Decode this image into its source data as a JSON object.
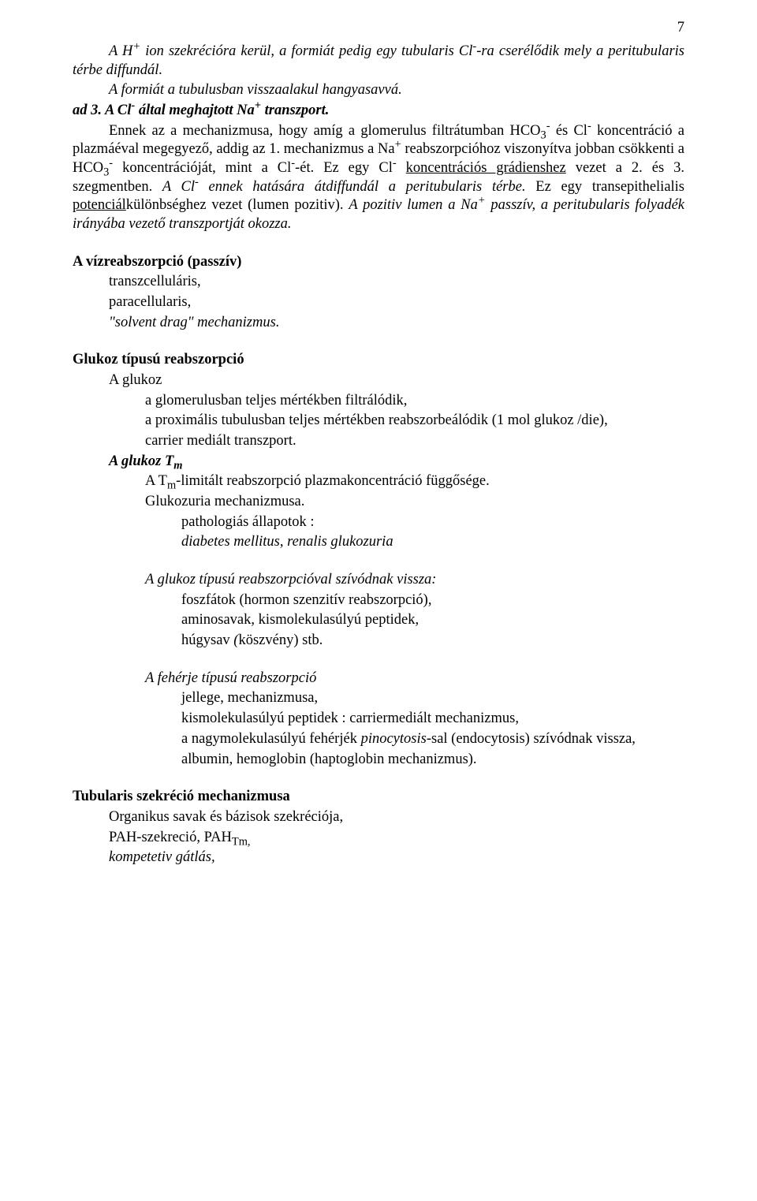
{
  "page_number": "7",
  "p1_seg1_i": "A H",
  "p1_seg2_sup": "+",
  "p1_seg3_i": " ion szekrécióra kerül, a formiát pedig egy tubularis Cl",
  "p1_seg4_sup": "-",
  "p1_seg5_i": "-ra cserélődik mely a peritubularis térbe diffundál.",
  "p2_i": "A formiát a tubulusban visszaalakul hangyasavvá.",
  "p3_a_bi": "ad 3.",
  "p3_b_bi": " A Cl",
  "p3_c_sup": "-",
  "p3_d_bi": " által meghajtott Na",
  "p3_e_sup": "+",
  "p3_f_bi": " transzport.",
  "p4_seg1": "Ennek az a mechanizmusa, hogy amíg a glomerulus filtrátumban HCO",
  "p4_seg2_sub": "3",
  "p4_seg3_sup": "-",
  "p4_seg4": " és Cl",
  "p4_seg5_sup": "-",
  "p4_seg6": " koncentráció a plazmáéval megegyező, addig az 1. mechanizmus a Na",
  "p4_seg7_sup": "+",
  "p4_seg8": " reabszorpcióhoz viszonyítva jobban csökkenti a HCO",
  "p4_seg9_sub": "3",
  "p4_seg10_sup": "-",
  "p4_seg11": " koncentrációját, mint a Cl",
  "p4_seg12_sup": "-",
  "p4_seg13": "-ét. Ez egy Cl",
  "p4_seg14_sup": "-",
  "p4_seg15": " ",
  "p4_seg16_u": "koncentrációs grádienshez",
  "p4_seg17": " vezet a 2. és 3. szegmentben. ",
  "p4_seg18_i": "A Cl",
  "p4_seg19_sup": "-",
  "p4_seg20_i": " ennek hatására átdiffundál a peritubularis térbe.",
  "p4_seg21": " Ez egy transepithelialis ",
  "p4_seg22_u": "potenciál",
  "p4_seg23": "különbséghez vezet (lumen pozitiv). ",
  "p4_seg24_i": "A pozitiv lumen a Na",
  "p4_seg25_sup": "+",
  "p4_seg26_i": " passzív, a peritubularis folyadék irányába vezető transzportját okozza.",
  "h_viz": "A vízreabszorpció (passzív)",
  "viz_l1": "transzcelluláris,",
  "viz_l2": "paracellularis,",
  "viz_l3_i": "\"solvent drag\" mechanizmus.",
  "h_glukoz": "Glukoz típusú reabszorpció",
  "g_l1": "A glukoz",
  "g_l2": "a glomerulusban teljes mértékben filtrálódik,",
  "g_l3": "a proximális tubulusban teljes mértékben reabszorbeálódik (1 mol glukoz /die),",
  "g_l4": "carrier mediált transzport.",
  "g_tm_bi_a": "A glukoz T",
  "g_tm_bi_b_sub": "m",
  "g_tm_l1_a": "A T",
  "g_tm_l1_b_sub": "m",
  "g_tm_l1_c": "-limitált reabszorpció plazmakoncentráció függősége.",
  "g_tm_l2": "Glukozuria mechanizmusa.",
  "g_tm_l3": "pathologiás állapotok :",
  "g_tm_l4_i": "diabetes mellitus, renalis  glukozuria",
  "g_tip_h_i": "A glukoz típusú reabszorpcióval szívódnak vissza:",
  "g_tip_l1": "foszfátok (hormon szenzitív reabszorpció),",
  "g_tip_l2": "aminosavak, kismolekulasúlyú peptidek,",
  "g_tip_l3_a": "húgysav ",
  "g_tip_l3_b_i": "(",
  "g_tip_l3_c": "köszvény) stb.",
  "feh_h_i": "A fehérje típusú reabszorpció",
  "feh_l1": "jellege, mechanizmusa,",
  "feh_l2": "kismolekulasúlyú peptidek : carriermediált mechanizmus,",
  "feh_l3_a": "a nagymolekulasúlyú fehérjék ",
  "feh_l3_b_i": "pinocytosis",
  "feh_l3_c": "-sal (endocytosis) szívódnak vissza,",
  "feh_l4": "albumin, hemoglobin (haptoglobin mechanizmus).",
  "h_tub": "Tubularis szekréció mechanizmusa",
  "tub_l1": "Organikus savak és bázisok szekréciója,",
  "tub_l2_a": "PAH-szekreció, PAH",
  "tub_l2_b_sub": "Tm,",
  "tub_l3_i": "kompetetiv gátlás,"
}
